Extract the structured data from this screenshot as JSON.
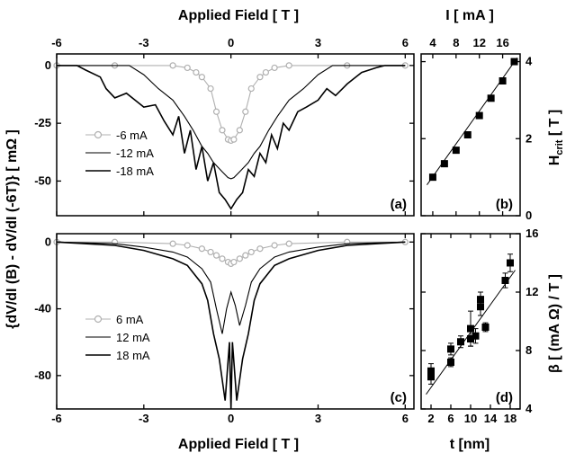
{
  "figure": {
    "top_axis_label": "Applied Field [ T ]",
    "bottom_axis_label": "Applied Field [ T ]",
    "left_axis_label": "{dV/dI (B) - dV/dI (-6T)} [ mΩ ]",
    "current_axis_label": "I [ mA ]",
    "thickness_axis_label": "t [nm]",
    "hcrit_label_main": "H",
    "hcrit_label_sub": "crit",
    "hcrit_label_unit": " [ T ]",
    "beta_axis_label": "β [ (mA Ω) / T ]"
  },
  "chart_data": [
    {
      "id": "a",
      "type": "line",
      "panel_label": "(a)",
      "xlabel": "Applied Field [ T ]",
      "xlim": [
        -6,
        6.3
      ],
      "ylim": [
        -65,
        5
      ],
      "xticks": [
        -6,
        -3,
        0,
        3,
        6
      ],
      "yticks": [
        0,
        -25,
        -50
      ],
      "series": [
        {
          "name": "-6 mA",
          "color": "#b0b0b0",
          "marker": "circle",
          "x": [
            -6,
            -4,
            -2,
            -1.5,
            -1.2,
            -1.0,
            -0.7,
            -0.5,
            -0.3,
            -0.1,
            0,
            0.1,
            0.3,
            0.5,
            0.7,
            1.0,
            1.2,
            1.5,
            2,
            4,
            6
          ],
          "y": [
            0,
            0,
            0,
            -1,
            -3,
            -5,
            -10,
            -20,
            -28,
            -32,
            -32.5,
            -32,
            -28,
            -20,
            -10,
            -5,
            -3,
            -1,
            0,
            0,
            0
          ]
        },
        {
          "name": "-12 mA",
          "color": "#000000",
          "marker": "none",
          "x": [
            -6,
            -3.5,
            -3,
            -2.5,
            -2,
            -1.6,
            -1.3,
            -1,
            -0.8,
            -0.6,
            -0.3,
            -0.1,
            0,
            0.1,
            0.3,
            0.6,
            0.8,
            1,
            1.3,
            1.6,
            2,
            2.5,
            3,
            3.5,
            6
          ],
          "y": [
            0,
            0,
            -4,
            -10,
            -15,
            -22,
            -28,
            -35,
            -38,
            -42,
            -46,
            -48.5,
            -49,
            -48.5,
            -46,
            -42,
            -38,
            -35,
            -28,
            -22,
            -15,
            -10,
            -4,
            0,
            0
          ]
        },
        {
          "name": "-18 mA",
          "color": "#000000",
          "marker": "none",
          "x": [
            -6,
            -5.3,
            -5,
            -4.5,
            -4.3,
            -4,
            -3.6,
            -3.3,
            -3,
            -2.6,
            -2.3,
            -2,
            -1.8,
            -1.6,
            -1.4,
            -1.2,
            -1,
            -0.8,
            -0.6,
            -0.4,
            -0.2,
            0,
            0.2,
            0.4,
            0.6,
            0.8,
            1,
            1.2,
            1.4,
            1.6,
            1.8,
            2,
            2.3,
            2.6,
            3,
            3.3,
            3.6,
            4,
            4.3,
            4.5,
            5,
            5.3,
            6
          ],
          "y": [
            0,
            0,
            -2,
            -5,
            -10,
            -14,
            -12,
            -15,
            -18,
            -17,
            -24,
            -30,
            -22,
            -38,
            -28,
            -45,
            -35,
            -50,
            -42,
            -55,
            -58,
            -62,
            -58,
            -55,
            -45,
            -48,
            -38,
            -42,
            -30,
            -36,
            -25,
            -28,
            -20,
            -18,
            -15,
            -10,
            -13,
            -8,
            -5,
            -3,
            -1,
            0,
            0
          ]
        }
      ]
    },
    {
      "id": "b",
      "type": "scatter",
      "panel_label": "(b)",
      "xlabel": "I [ mA ]",
      "ylabel": "H crit [ T ]",
      "xlim": [
        2,
        19
      ],
      "ylim": [
        0,
        4.2
      ],
      "xticks": [
        4,
        8,
        12,
        16
      ],
      "yticks": [
        0,
        2,
        4
      ],
      "points_x": [
        4,
        6,
        8,
        10,
        12,
        14,
        16,
        18
      ],
      "points_y": [
        1.0,
        1.35,
        1.7,
        2.1,
        2.6,
        3.05,
        3.5,
        4.0
      ],
      "fit_line": {
        "x": [
          3,
          18.5
        ],
        "y": [
          0.8,
          4.1
        ]
      }
    },
    {
      "id": "c",
      "type": "line",
      "panel_label": "(c)",
      "xlabel": "Applied Field [ T ]",
      "xlim": [
        -6,
        6.3
      ],
      "ylim": [
        -100,
        5
      ],
      "xticks": [
        -6,
        -3,
        0,
        3,
        6
      ],
      "yticks": [
        0,
        -40,
        -80
      ],
      "series": [
        {
          "name": "6 mA",
          "color": "#b0b0b0",
          "marker": "circle",
          "x": [
            -6,
            -4,
            -2,
            -1.5,
            -1,
            -0.7,
            -0.5,
            -0.3,
            -0.1,
            0,
            0.1,
            0.3,
            0.5,
            0.7,
            1,
            1.5,
            2,
            4,
            6
          ],
          "y": [
            0,
            0,
            -1,
            -2,
            -4,
            -6,
            -8,
            -10,
            -12,
            -13,
            -12,
            -10,
            -8,
            -6,
            -4,
            -2,
            -1,
            0,
            0
          ]
        },
        {
          "name": "12 mA",
          "color": "#000000",
          "marker": "none",
          "x": [
            -6,
            -4,
            -3,
            -2,
            -1.5,
            -1,
            -0.7,
            -0.5,
            -0.3,
            -0.15,
            0,
            0.15,
            0.3,
            0.5,
            0.7,
            1,
            1.5,
            2,
            3,
            4,
            6
          ],
          "y": [
            0,
            -1,
            -3,
            -6,
            -9,
            -16,
            -24,
            -40,
            -55,
            -40,
            -30,
            -38,
            -50,
            -38,
            -24,
            -16,
            -9,
            -6,
            -3,
            -1,
            0
          ]
        },
        {
          "name": "18 mA",
          "color": "#000000",
          "marker": "none",
          "x": [
            -6,
            -4,
            -3,
            -2,
            -1.5,
            -1,
            -0.8,
            -0.6,
            -0.4,
            -0.2,
            -0.05,
            0,
            0.05,
            0.2,
            0.4,
            0.6,
            0.8,
            1,
            1.5,
            2,
            3,
            4,
            6
          ],
          "y": [
            0,
            -2,
            -5,
            -10,
            -14,
            -25,
            -35,
            -55,
            -70,
            -95,
            -60,
            -100,
            -60,
            -95,
            -70,
            -55,
            -35,
            -25,
            -14,
            -10,
            -5,
            -2,
            0
          ]
        }
      ]
    },
    {
      "id": "d",
      "type": "scatter",
      "panel_label": "(d)",
      "xlabel": "t [nm]",
      "ylabel": "β [ (mA Ω) / T ]",
      "xlim": [
        0,
        20
      ],
      "ylim": [
        4,
        16
      ],
      "xticks": [
        2,
        6,
        10,
        14,
        18
      ],
      "yticks": [
        4,
        8,
        12,
        16
      ],
      "points_x": [
        2,
        2,
        6,
        6,
        8,
        10,
        10,
        11,
        12,
        12,
        13,
        17,
        18
      ],
      "points_y": [
        6.2,
        6.6,
        7.2,
        8.1,
        8.6,
        8.8,
        9.5,
        9.0,
        11.0,
        11.5,
        9.6,
        12.8,
        14.0
      ],
      "errors": [
        0.5,
        0.5,
        0.3,
        0.4,
        0.4,
        0.5,
        1.2,
        0.5,
        0.6,
        0.5,
        0.3,
        0.5,
        0.6
      ],
      "fit_line": {
        "x": [
          1,
          19
        ],
        "y": [
          5.0,
          13.5
        ]
      }
    }
  ]
}
